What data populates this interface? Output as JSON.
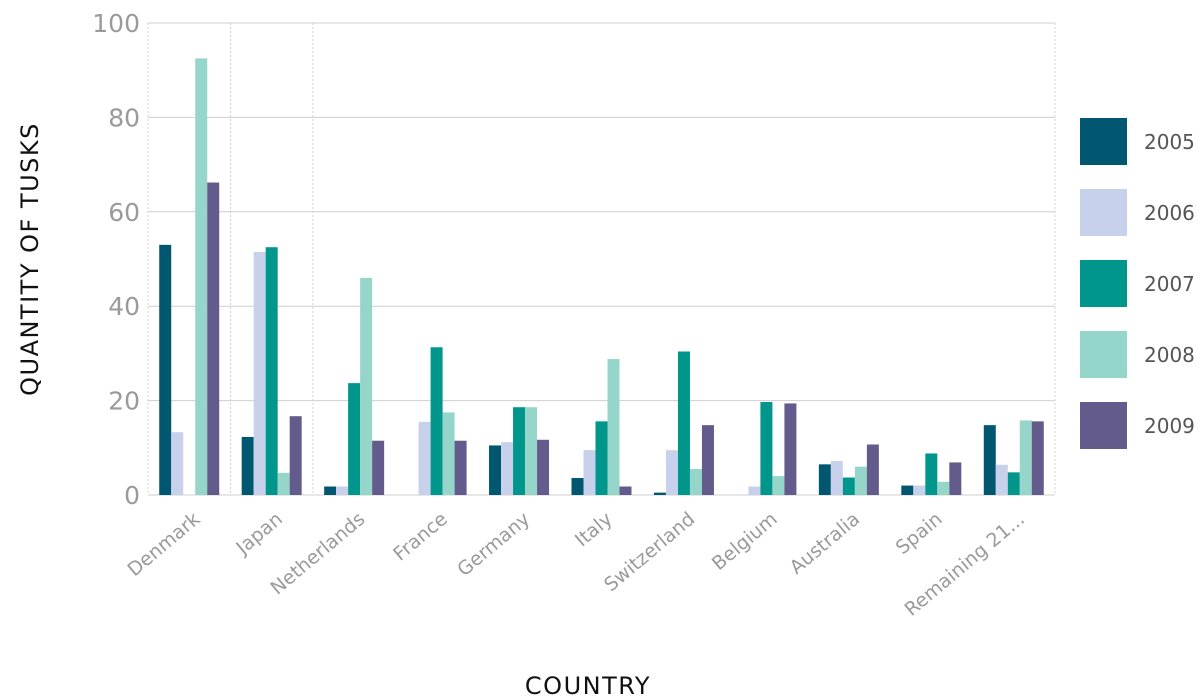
{
  "chart_data": {
    "type": "bar",
    "xlabel": "COUNTRY",
    "ylabel": "QUANTITY OF TUSKS",
    "ylim": [
      0,
      100
    ],
    "yticks": [
      0,
      20,
      40,
      60,
      80,
      100
    ],
    "grid": true,
    "legend_position": "right",
    "categories": [
      "Denmark",
      "Japan",
      "Netherlands",
      "France",
      "Germany",
      "Italy",
      "Switzerland",
      "Belgium",
      "Australia",
      "Spain",
      "Remaining 21..."
    ],
    "series": [
      {
        "name": "2005",
        "color": "#00576f",
        "values": [
          53,
          12.3,
          1.8,
          0,
          10.5,
          3.6,
          0.5,
          0,
          6.5,
          2,
          14.8
        ]
      },
      {
        "name": "2006",
        "color": "#c8d1ec",
        "values": [
          13.3,
          51.5,
          1.8,
          15.5,
          11.2,
          9.5,
          9.5,
          1.8,
          7.2,
          2,
          6.4
        ]
      },
      {
        "name": "2007",
        "color": "#00968c",
        "values": [
          0,
          52.5,
          23.7,
          31.3,
          18.6,
          15.6,
          30.4,
          19.7,
          3.7,
          8.8,
          4.8
        ]
      },
      {
        "name": "2008",
        "color": "#95d5ca",
        "values": [
          92.5,
          4.7,
          46,
          17.5,
          18.6,
          28.8,
          5.5,
          4,
          6,
          2.8,
          15.8
        ]
      },
      {
        "name": "2009",
        "color": "#645b8d",
        "values": [
          66.2,
          16.7,
          11.5,
          11.5,
          11.7,
          1.8,
          14.8,
          19.4,
          10.7,
          6.9,
          15.6
        ]
      }
    ]
  }
}
